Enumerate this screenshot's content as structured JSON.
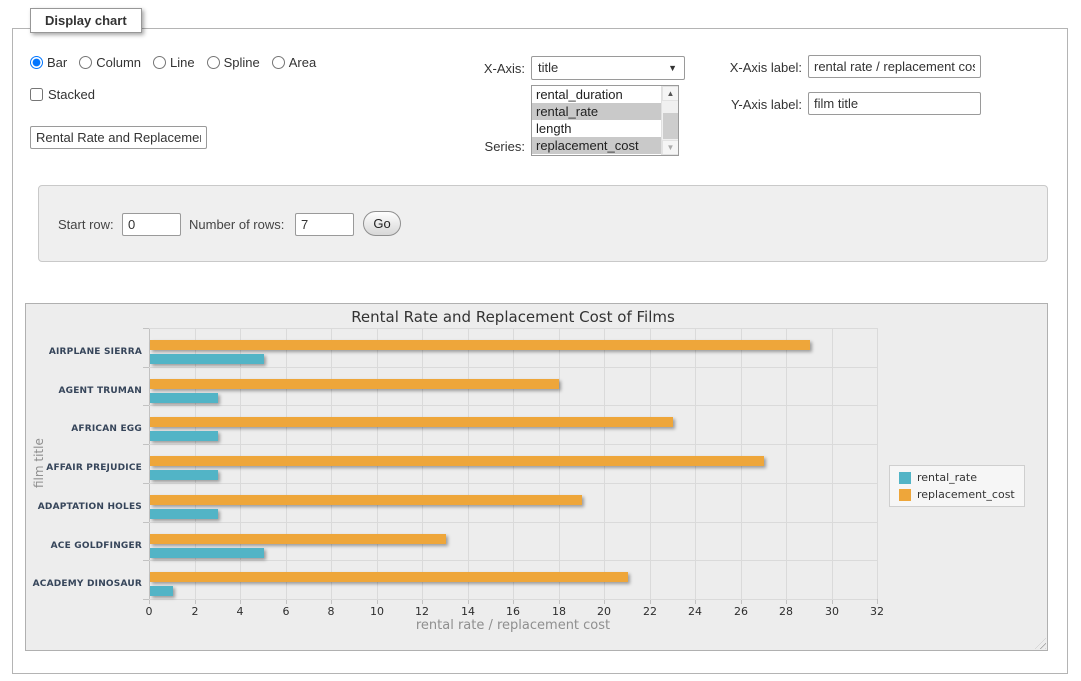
{
  "panel": {
    "title": "Display chart"
  },
  "controls": {
    "chart_types": {
      "options": [
        "Bar",
        "Column",
        "Line",
        "Spline",
        "Area"
      ],
      "selected": "Bar"
    },
    "stacked": {
      "label": "Stacked",
      "checked": false
    },
    "chart_title_input": {
      "value": "Rental Rate and Replacement Cost of Films"
    },
    "x_axis_select": {
      "label": "X-Axis:",
      "value": "title"
    },
    "series_list": {
      "label": "Series:",
      "options": [
        "rental_duration",
        "rental_rate",
        "length",
        "replacement_cost"
      ],
      "selected": [
        "rental_rate",
        "replacement_cost"
      ]
    },
    "x_axis_label_input": {
      "label": "X-Axis label:",
      "value": "rental rate / replacement cost"
    },
    "y_axis_label_input": {
      "label": "Y-Axis label:",
      "value": "film title"
    }
  },
  "row_controls": {
    "start_row_label": "Start row:",
    "start_row_value": "0",
    "rows_label": "Number of rows:",
    "rows_value": "7",
    "go_button": "Go"
  },
  "chart_data": {
    "type": "bar",
    "title": "Rental Rate and Replacement Cost of Films",
    "categories": [
      "AIRPLANE SIERRA",
      "AGENT TRUMAN",
      "AFRICAN EGG",
      "AFFAIR PREJUDICE",
      "ADAPTATION HOLES",
      "ACE GOLDFINGER",
      "ACADEMY DINOSAUR"
    ],
    "series": [
      {
        "name": "rental_rate",
        "color": "#52b4c6",
        "values": [
          4.99,
          2.99,
          2.99,
          2.99,
          2.99,
          4.99,
          0.99
        ]
      },
      {
        "name": "replacement_cost",
        "color": "#eea63a",
        "values": [
          28.99,
          17.99,
          22.99,
          26.99,
          18.99,
          12.99,
          20.99
        ]
      }
    ],
    "series_row_order": [
      "replacement_cost",
      "rental_rate"
    ],
    "xlabel": "rental rate / replacement cost",
    "ylabel": "film title",
    "xlim": [
      0,
      32
    ],
    "x_tick_step": 2,
    "grid": true,
    "legend_position": "right",
    "plot_background": "#ededed",
    "gridline_color": "#dadada"
  }
}
